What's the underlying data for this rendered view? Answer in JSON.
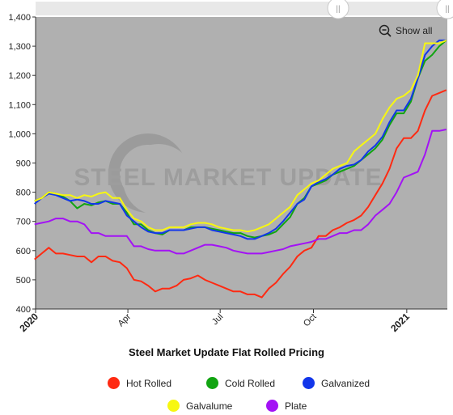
{
  "chart_data": {
    "type": "line",
    "title": "Steel Market Update Flat Rolled Pricing",
    "watermark": "STEEL MARKET UPDATE",
    "ylim": [
      400,
      1400
    ],
    "y_ticks": [
      "400",
      "500",
      "600",
      "700",
      "800",
      "900",
      "1,000",
      "1,100",
      "1,200",
      "1,300",
      "1,400"
    ],
    "x_tick_labels": [
      "2020",
      "Apr",
      "Jul",
      "Oct",
      "2021"
    ],
    "x_domain": [
      "2020-01-01",
      "2021-02-10"
    ],
    "x_tick_dates": [
      "2020-01-01",
      "2020-04-01",
      "2020-07-01",
      "2020-10-01",
      "2021-01-01"
    ],
    "plot_background": "#b0b0b0",
    "dates": [
      "2019-12-31",
      "2020-01-07",
      "2020-01-14",
      "2020-01-21",
      "2020-01-28",
      "2020-02-04",
      "2020-02-11",
      "2020-02-18",
      "2020-02-25",
      "2020-03-03",
      "2020-03-10",
      "2020-03-17",
      "2020-03-24",
      "2020-03-31",
      "2020-04-07",
      "2020-04-14",
      "2020-04-21",
      "2020-04-28",
      "2020-05-05",
      "2020-05-12",
      "2020-05-19",
      "2020-05-26",
      "2020-06-02",
      "2020-06-09",
      "2020-06-16",
      "2020-06-23",
      "2020-06-30",
      "2020-07-07",
      "2020-07-14",
      "2020-07-21",
      "2020-07-28",
      "2020-08-04",
      "2020-08-11",
      "2020-08-18",
      "2020-08-25",
      "2020-09-01",
      "2020-09-08",
      "2020-09-15",
      "2020-09-22",
      "2020-09-29",
      "2020-10-06",
      "2020-10-13",
      "2020-10-20",
      "2020-10-27",
      "2020-11-03",
      "2020-11-10",
      "2020-11-17",
      "2020-11-24",
      "2020-12-01",
      "2020-12-08",
      "2020-12-15",
      "2020-12-22",
      "2020-12-29",
      "2021-01-05",
      "2021-01-12",
      "2021-01-19",
      "2021-01-26",
      "2021-02-02",
      "2021-02-09"
    ],
    "series": [
      {
        "name": "Hot Rolled",
        "color": "#ff2a12",
        "values": [
          570,
          590,
          610,
          590,
          590,
          585,
          580,
          580,
          560,
          580,
          580,
          565,
          560,
          540,
          500,
          495,
          480,
          460,
          470,
          470,
          480,
          500,
          505,
          515,
          500,
          490,
          480,
          470,
          460,
          460,
          450,
          450,
          440,
          470,
          490,
          520,
          545,
          580,
          600,
          610,
          650,
          650,
          670,
          680,
          695,
          705,
          720,
          750,
          790,
          830,
          880,
          950,
          985,
          985,
          1010,
          1080,
          1130,
          1140,
          1150
        ]
      },
      {
        "name": "Cold Rolled",
        "color": "#11a411",
        "values": [
          770,
          780,
          800,
          795,
          785,
          770,
          745,
          760,
          755,
          765,
          770,
          760,
          760,
          730,
          690,
          690,
          670,
          660,
          655,
          670,
          670,
          670,
          680,
          680,
          680,
          675,
          670,
          665,
          660,
          660,
          650,
          645,
          650,
          655,
          665,
          690,
          715,
          760,
          780,
          820,
          830,
          840,
          860,
          870,
          880,
          890,
          910,
          930,
          950,
          980,
          1030,
          1070,
          1070,
          1110,
          1190,
          1250,
          1270,
          1300,
          1320
        ]
      },
      {
        "name": "Galvanized",
        "color": "#1236ea",
        "values": [
          760,
          780,
          795,
          790,
          780,
          770,
          775,
          770,
          760,
          760,
          770,
          765,
          760,
          720,
          700,
          680,
          665,
          660,
          660,
          670,
          670,
          670,
          675,
          680,
          680,
          670,
          665,
          660,
          655,
          650,
          640,
          640,
          650,
          660,
          675,
          700,
          730,
          760,
          775,
          820,
          835,
          845,
          860,
          880,
          890,
          895,
          910,
          940,
          960,
          990,
          1040,
          1080,
          1080,
          1120,
          1190,
          1270,
          1300,
          1320,
          1320
        ]
      },
      {
        "name": "Galvalume",
        "color": "#f7f710",
        "values": [
          770,
          780,
          800,
          795,
          790,
          790,
          780,
          790,
          785,
          795,
          800,
          780,
          780,
          740,
          710,
          700,
          680,
          670,
          670,
          680,
          680,
          680,
          690,
          695,
          695,
          690,
          680,
          675,
          670,
          670,
          665,
          670,
          680,
          690,
          710,
          730,
          750,
          790,
          810,
          830,
          840,
          860,
          880,
          890,
          900,
          940,
          960,
          980,
          1000,
          1050,
          1090,
          1120,
          1130,
          1150,
          1200,
          1310,
          1310,
          1310,
          1320
        ]
      },
      {
        "name": "Plate",
        "color": "#a312f5",
        "values": [
          690,
          695,
          700,
          710,
          710,
          700,
          700,
          690,
          660,
          660,
          650,
          650,
          650,
          650,
          615,
          615,
          605,
          600,
          600,
          600,
          590,
          590,
          600,
          610,
          620,
          620,
          615,
          610,
          600,
          595,
          590,
          590,
          590,
          595,
          600,
          605,
          615,
          620,
          625,
          630,
          640,
          640,
          650,
          660,
          660,
          670,
          670,
          690,
          720,
          740,
          760,
          800,
          850,
          860,
          870,
          930,
          1010,
          1010,
          1015
        ]
      }
    ],
    "legend_placement": "bottom",
    "grid": false
  },
  "ui": {
    "show_all_label": "Show all"
  }
}
